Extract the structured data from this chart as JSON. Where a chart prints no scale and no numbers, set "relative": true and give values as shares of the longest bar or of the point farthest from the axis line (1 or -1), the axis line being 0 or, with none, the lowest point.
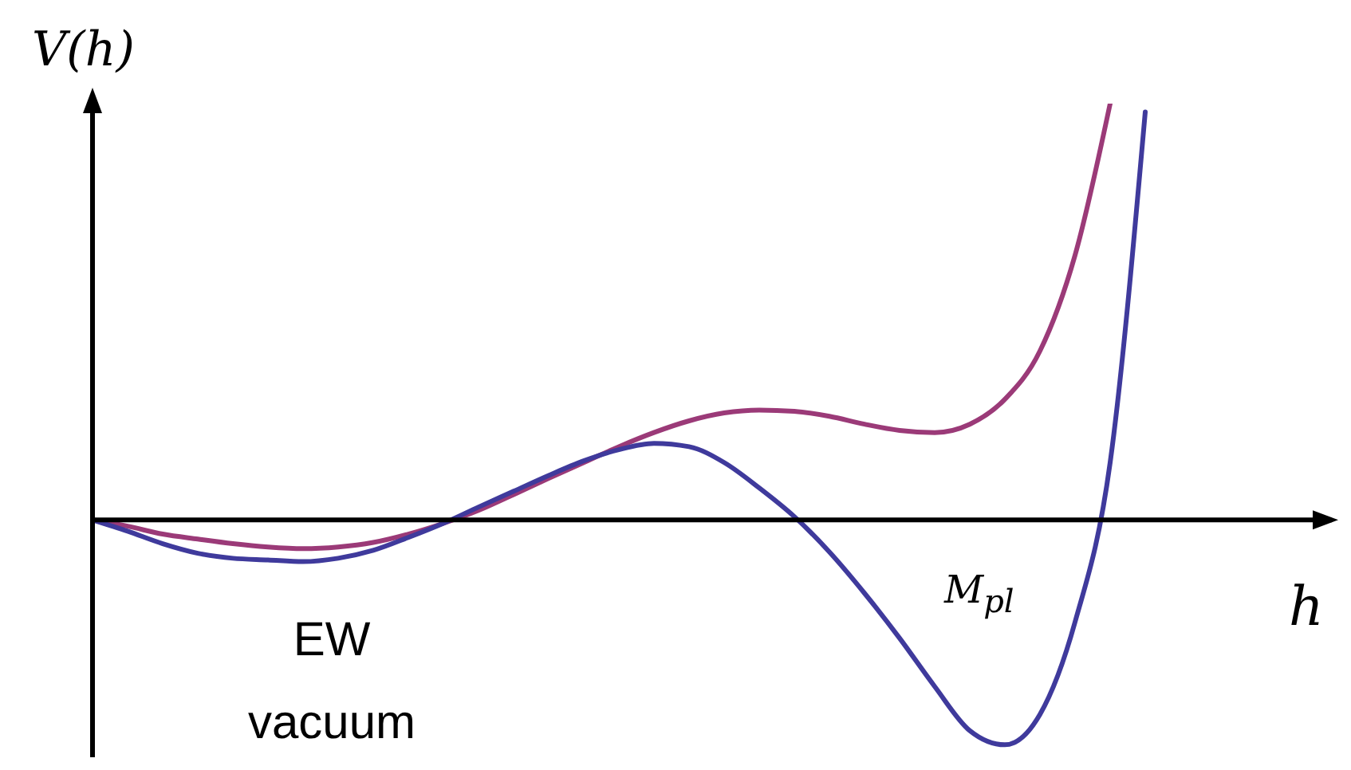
{
  "chart_data": {
    "type": "line",
    "relative": true,
    "xlabel": "h",
    "ylabel": "V(h)",
    "categories": [
      null,
      null,
      null,
      null,
      null,
      null,
      null,
      null,
      null,
      null,
      null,
      null,
      null,
      null,
      null,
      null,
      null,
      null,
      null,
      null,
      null,
      null,
      null,
      null,
      null,
      null,
      null,
      null,
      null,
      null,
      null
    ],
    "series": [
      {
        "color": "#9b3a78",
        "values": [
          0,
          -0.015,
          -0.034,
          -0.046,
          -0.057,
          -0.065,
          -0.069,
          -0.065,
          -0.054,
          -0.034,
          -0.008,
          0.023,
          0.061,
          0.1,
          0.138,
          0.176,
          0.21,
          0.238,
          0.257,
          0.264,
          0.261,
          0.249,
          0.23,
          0.215,
          0.21,
          0.23,
          0.29,
          0.406,
          0.636,
          1.0,
          null
        ]
      },
      {
        "color": "#3f3a9c",
        "values": [
          0,
          -0.027,
          -0.057,
          -0.08,
          -0.092,
          -0.096,
          -0.1,
          -0.092,
          -0.073,
          -0.042,
          -0.008,
          0.031,
          0.069,
          0.107,
          0.142,
          0.169,
          0.184,
          0.176,
          0.138,
          0.077,
          0.008,
          -0.077,
          -0.176,
          -0.284,
          -0.4,
          -0.506,
          -0.54,
          -0.467,
          -0.245,
          0.138,
          0.98
        ]
      }
    ],
    "annotations": [
      "EW vacuum",
      "M$_{pl}$"
    ]
  }
}
